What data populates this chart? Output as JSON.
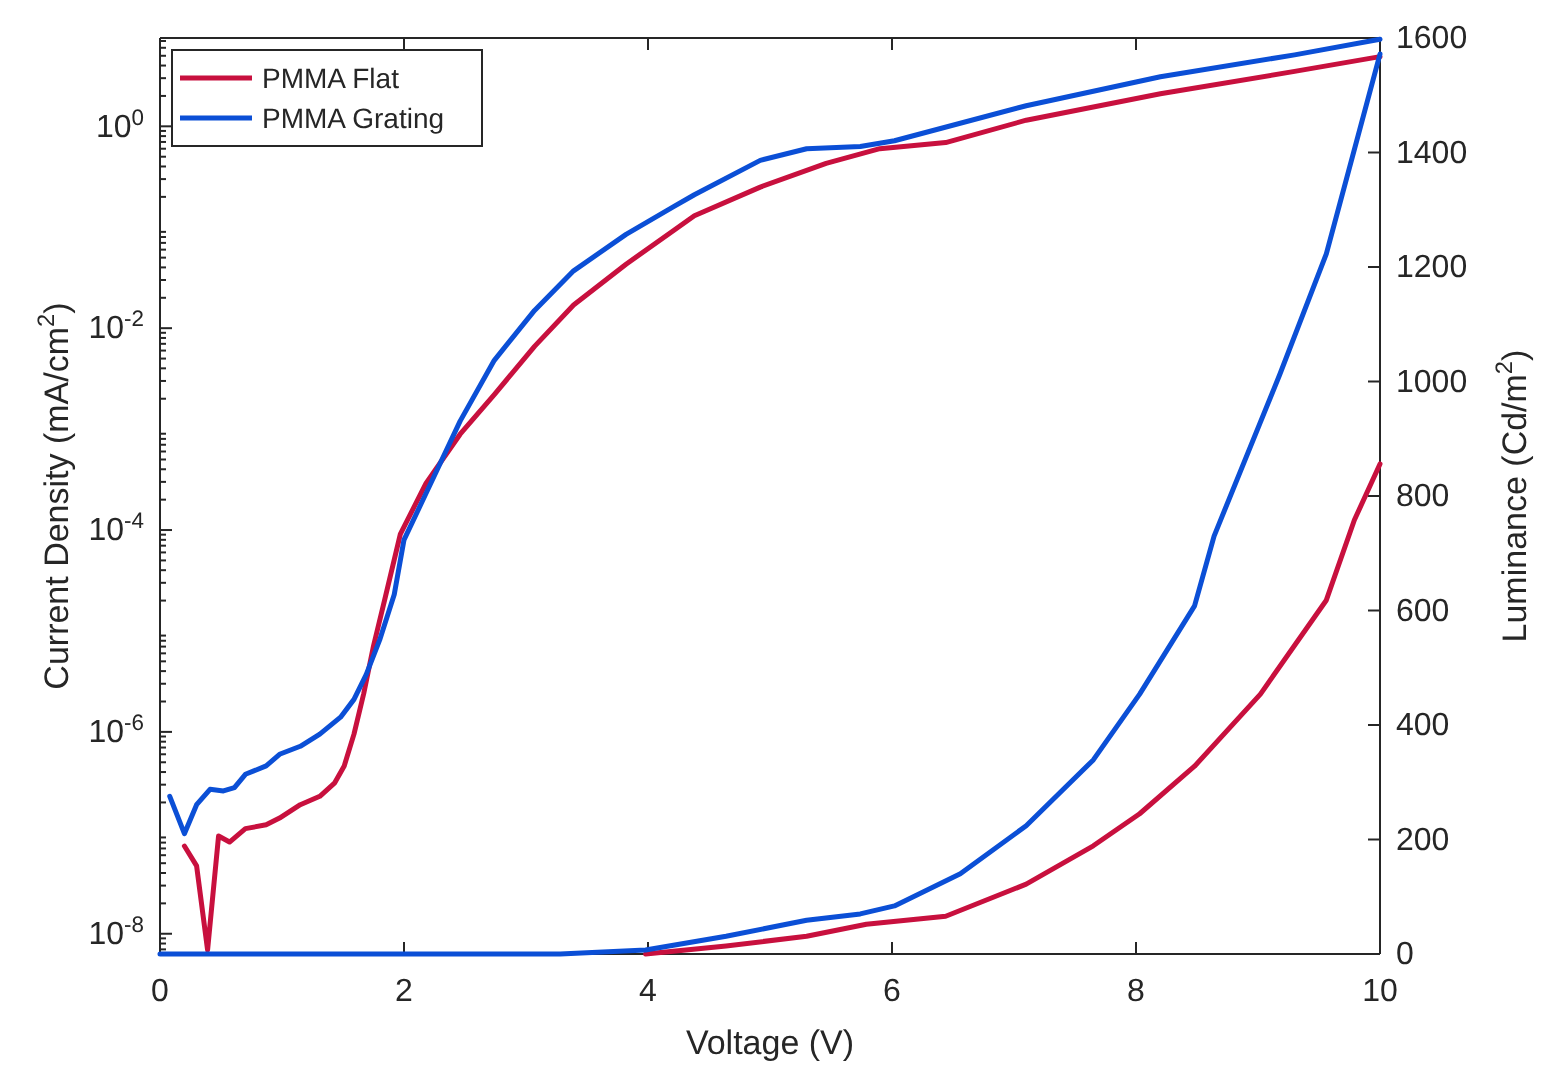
{
  "chart_data": {
    "type": "line",
    "xlabel": "Voltage (V)",
    "ylabel": "Current Density (mA/cm$^{2}$)",
    "y2label": "Luminance (Cd/m$^{2}$)",
    "xlim": [
      0,
      10
    ],
    "xticks": [
      0,
      2,
      4,
      6,
      8,
      10
    ],
    "ylim": [
      6.3e-09,
      7.5
    ],
    "yticks": [
      {
        "value": 1e-08,
        "label": "10$^{-8}$"
      },
      {
        "value": 1e-06,
        "label": "10$^{-6}$"
      },
      {
        "value": 0.0001,
        "label": "10$^{-4}$"
      },
      {
        "value": 0.01,
        "label": "10$^{-2}$"
      },
      {
        "value": 1,
        "label": "10$^{0}$"
      }
    ],
    "y2lim": [
      0,
      1600
    ],
    "y2ticks": [
      0,
      200,
      400,
      600,
      800,
      1000,
      1200,
      1400,
      1600
    ],
    "log": "y",
    "grid": false,
    "legend": "top left",
    "line_style": "solid",
    "marker": "none",
    "series": [
      {
        "name": "PMMA Flat",
        "color": "#c8103e",
        "x": [
          0.2,
          0.3,
          0.39,
          0.48,
          0.57,
          0.7,
          0.87,
          0.98,
          1.15,
          1.31,
          1.43,
          1.51,
          1.59,
          1.67,
          1.75,
          1.84,
          1.97,
          2.18,
          2.46,
          2.74,
          3.07,
          3.39,
          3.82,
          4.21,
          4.38,
          4.92,
          5.46,
          5.9,
          6.44,
          7.1,
          8.2,
          9.3,
          10
        ],
        "values": [
          7.4e-08,
          4.7e-08,
          6.9e-09,
          9.3e-08,
          8.1e-08,
          1.1e-07,
          1.2e-07,
          1.4e-07,
          1.9e-07,
          2.3e-07,
          3.1e-07,
          4.6e-07,
          9.5e-07,
          2.4e-06,
          7.1e-06,
          2e-05,
          9.1e-05,
          0.00029,
          0.00089,
          0.0022,
          0.0066,
          0.017,
          0.043,
          0.093,
          0.13,
          0.25,
          0.43,
          0.6,
          0.69,
          1.15,
          2.1,
          3.5,
          4.9
        ]
      },
      {
        "name": "PMMA Grating",
        "color": "#0b4fd6",
        "x": [
          0.08,
          0.2,
          0.3,
          0.41,
          0.52,
          0.61,
          0.7,
          0.87,
          0.98,
          1.15,
          1.31,
          1.48,
          1.59,
          1.69,
          1.8,
          1.92,
          2.0,
          2.18,
          2.46,
          2.74,
          3.07,
          3.39,
          3.82,
          4.21,
          4.38,
          4.92,
          5.3,
          5.74,
          6.02,
          7.1,
          8.2,
          9.3,
          10
        ],
        "values": [
          2.3e-07,
          9.8e-08,
          1.9e-07,
          2.7e-07,
          2.6e-07,
          2.8e-07,
          3.8e-07,
          4.6e-07,
          6e-07,
          7.2e-07,
          9.5e-07,
          1.4e-06,
          2.1e-06,
          3.7e-06,
          8.1e-06,
          2.3e-05,
          8e-05,
          0.00023,
          0.0012,
          0.0048,
          0.015,
          0.037,
          0.085,
          0.16,
          0.21,
          0.46,
          0.6,
          0.63,
          0.72,
          1.6,
          3.1,
          5.1,
          7.3
        ]
      },
      {
        "color": "#c8103e",
        "axis": "y2",
        "x": [
          3.98,
          4.64,
          5.3,
          5.79,
          6.44,
          7.1,
          7.65,
          8.03,
          8.48,
          9.02,
          9.56,
          9.79,
          10
        ],
        "values": [
          0,
          14,
          31,
          52,
          66,
          122,
          189,
          245,
          328,
          454,
          618,
          758,
          856
        ]
      },
      {
        "color": "#0b4fd6",
        "axis": "y2",
        "x": [
          0,
          3.28,
          3.98,
          4.64,
          5.3,
          5.74,
          6.02,
          6.56,
          7.1,
          7.65,
          8.03,
          8.48,
          8.64,
          9.18,
          9.56,
          10
        ],
        "values": [
          0,
          0,
          7,
          31,
          59,
          70,
          84,
          140,
          224,
          339,
          454,
          608,
          730,
          1013,
          1223,
          1572
        ]
      }
    ]
  }
}
